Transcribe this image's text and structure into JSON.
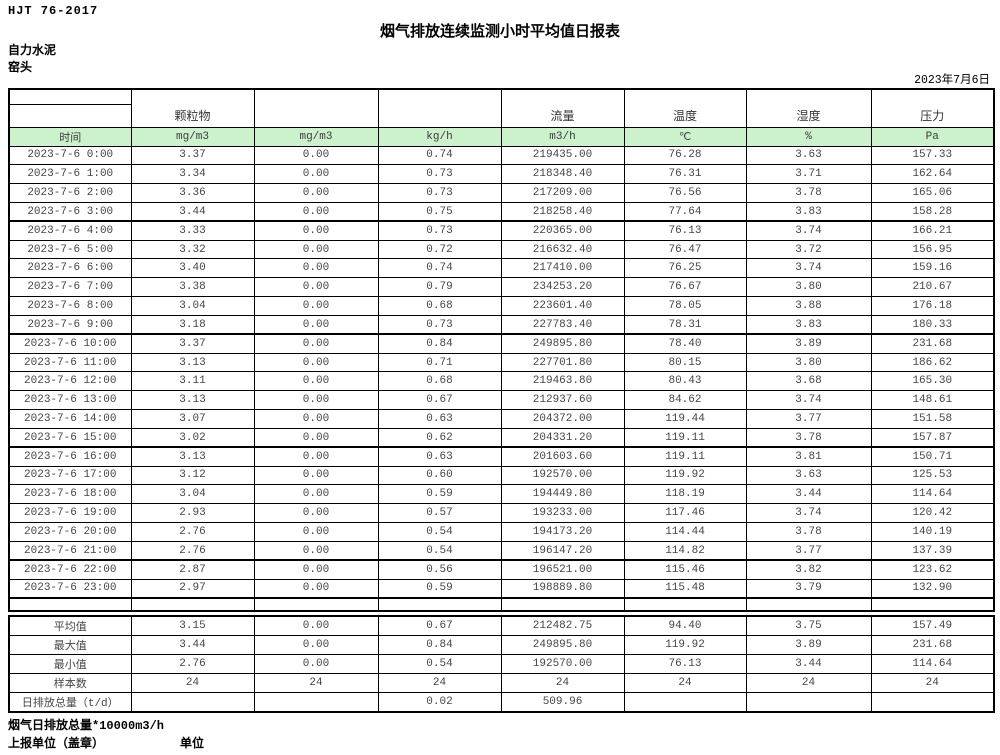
{
  "page": {
    "standard_code": "HJT  76-2017",
    "title": "烟气排放连续监测小时平均值日报表",
    "company": "自力水泥",
    "location": "窑头",
    "date": "2023年7月6日"
  },
  "table": {
    "group_headers": [
      "",
      "颗粒物",
      "",
      "",
      "流量",
      "温度",
      "湿度",
      "压力"
    ],
    "unit_row": [
      "时间",
      "mg/m3",
      "mg/m3",
      "kg/h",
      "m3/h",
      "℃",
      "%",
      "Pa"
    ],
    "rows": [
      [
        "2023-7-6 0:00",
        "3.37",
        "0.00",
        "0.74",
        "219435.00",
        "76.28",
        "3.63",
        "157.33"
      ],
      [
        "2023-7-6 1:00",
        "3.34",
        "0.00",
        "0.73",
        "218348.40",
        "76.31",
        "3.71",
        "162.64"
      ],
      [
        "2023-7-6 2:00",
        "3.36",
        "0.00",
        "0.73",
        "217209.00",
        "76.56",
        "3.78",
        "165.06"
      ],
      [
        "2023-7-6 3:00",
        "3.44",
        "0.00",
        "0.75",
        "218258.40",
        "77.64",
        "3.83",
        "158.28"
      ],
      [
        "2023-7-6 4:00",
        "3.33",
        "0.00",
        "0.73",
        "220365.00",
        "76.13",
        "3.74",
        "166.21"
      ],
      [
        "2023-7-6 5:00",
        "3.32",
        "0.00",
        "0.72",
        "216632.40",
        "76.47",
        "3.72",
        "156.95"
      ],
      [
        "2023-7-6 6:00",
        "3.40",
        "0.00",
        "0.74",
        "217410.00",
        "76.25",
        "3.74",
        "159.16"
      ],
      [
        "2023-7-6 7:00",
        "3.38",
        "0.00",
        "0.79",
        "234253.20",
        "76.67",
        "3.80",
        "210.67"
      ],
      [
        "2023-7-6 8:00",
        "3.04",
        "0.00",
        "0.68",
        "223601.40",
        "78.05",
        "3.88",
        "176.18"
      ],
      [
        "2023-7-6 9:00",
        "3.18",
        "0.00",
        "0.73",
        "227783.40",
        "78.31",
        "3.83",
        "180.33"
      ],
      [
        "2023-7-6 10:00",
        "3.37",
        "0.00",
        "0.84",
        "249895.80",
        "78.40",
        "3.89",
        "231.68"
      ],
      [
        "2023-7-6 11:00",
        "3.13",
        "0.00",
        "0.71",
        "227701.80",
        "80.15",
        "3.80",
        "186.62"
      ],
      [
        "2023-7-6 12:00",
        "3.11",
        "0.00",
        "0.68",
        "219463.80",
        "80.43",
        "3.68",
        "165.30"
      ],
      [
        "2023-7-6 13:00",
        "3.13",
        "0.00",
        "0.67",
        "212937.60",
        "84.62",
        "3.74",
        "148.61"
      ],
      [
        "2023-7-6 14:00",
        "3.07",
        "0.00",
        "0.63",
        "204372.00",
        "119.44",
        "3.77",
        "151.58"
      ],
      [
        "2023-7-6 15:00",
        "3.02",
        "0.00",
        "0.62",
        "204331.20",
        "119.11",
        "3.78",
        "157.87"
      ],
      [
        "2023-7-6 16:00",
        "3.13",
        "0.00",
        "0.63",
        "201603.60",
        "119.11",
        "3.81",
        "150.71"
      ],
      [
        "2023-7-6 17:00",
        "3.12",
        "0.00",
        "0.60",
        "192570.00",
        "119.92",
        "3.63",
        "125.53"
      ],
      [
        "2023-7-6 18:00",
        "3.04",
        "0.00",
        "0.59",
        "194449.80",
        "118.19",
        "3.44",
        "114.64"
      ],
      [
        "2023-7-6 19:00",
        "2.93",
        "0.00",
        "0.57",
        "193233.00",
        "117.46",
        "3.74",
        "120.42"
      ],
      [
        "2023-7-6 20:00",
        "2.76",
        "0.00",
        "0.54",
        "194173.20",
        "114.44",
        "3.78",
        "140.19"
      ],
      [
        "2023-7-6 21:00",
        "2.76",
        "0.00",
        "0.54",
        "196147.20",
        "114.82",
        "3.77",
        "137.39"
      ],
      [
        "2023-7-6 22:00",
        "2.87",
        "0.00",
        "0.56",
        "196521.00",
        "115.46",
        "3.82",
        "123.62"
      ],
      [
        "2023-7-6 23:00",
        "2.97",
        "0.00",
        "0.59",
        "198889.80",
        "115.48",
        "3.79",
        "132.90"
      ]
    ],
    "summary_rows": [
      [
        "平均值",
        "3.15",
        "0.00",
        "0.67",
        "212482.75",
        "94.40",
        "3.75",
        "157.49"
      ],
      [
        "最大值",
        "3.44",
        "0.00",
        "0.84",
        "249895.80",
        "119.92",
        "3.89",
        "231.68"
      ],
      [
        "最小值",
        "2.76",
        "0.00",
        "0.54",
        "192570.00",
        "76.13",
        "3.44",
        "114.64"
      ],
      [
        "样本数",
        "24",
        "24",
        "24",
        "24",
        "24",
        "24",
        "24"
      ],
      [
        "日排放总量（t/d）",
        "",
        "",
        "0.02",
        "509.96",
        "",
        "",
        ""
      ]
    ]
  },
  "footer": {
    "total_note": "烟气日排放总量*10000m3/h",
    "report_unit_label": "上报单位（盖章）",
    "unit_label": "单位"
  },
  "colors": {
    "header_green": "#ccf2cc",
    "border": "#000000",
    "text": "#454545"
  }
}
